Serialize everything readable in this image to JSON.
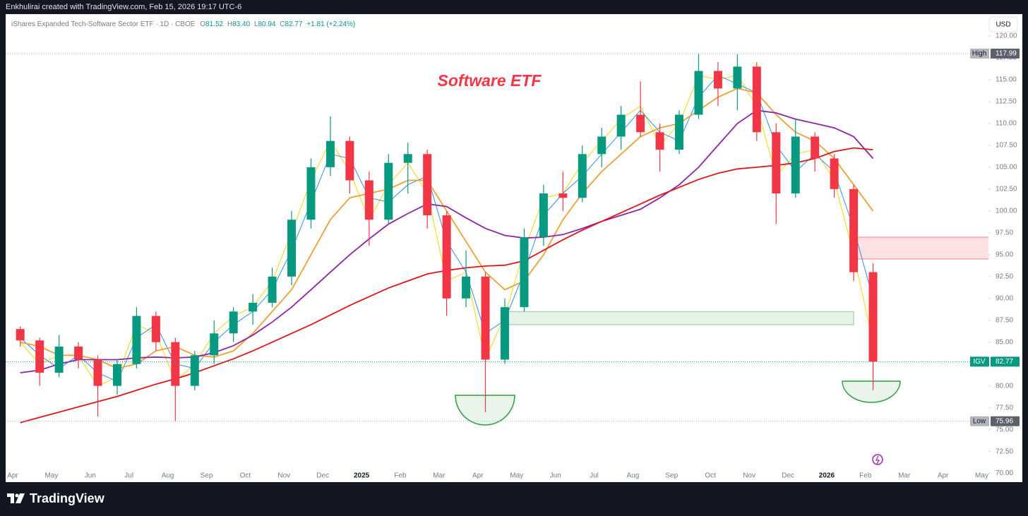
{
  "top_bar": "Enkhulirai created with TradingView.com, Feb 15, 2026 19:17 UTC-6",
  "brand": "TradingView",
  "header": {
    "symbol": "iShares Expanded Tech-Software Sector ETF · 1D · CBOE",
    "o_label": "O",
    "open": "81.52",
    "h_label": "H",
    "high": "83.40",
    "l_label": "L",
    "low": "80.94",
    "c_label": "C",
    "close": "82.77",
    "change": "+1.81 (+2.24%)",
    "currency": "USD"
  },
  "chart_data": {
    "type": "candlestick",
    "title": "Software ETF",
    "categories": [
      "Apr",
      null,
      "May",
      null,
      "Jun",
      null,
      "Jul",
      null,
      "Aug",
      null,
      "Sep",
      null,
      "Oct",
      null,
      "Nov",
      null,
      "Dec",
      null,
      "2025",
      null,
      "Feb",
      null,
      "Mar",
      null,
      "Apr",
      null,
      "May",
      null,
      "Jun",
      null,
      "Jul",
      null,
      "Aug",
      null,
      "Sep",
      null,
      "Oct",
      null,
      "Nov",
      null,
      "Dec",
      null,
      "2026",
      null,
      "Feb",
      null,
      "Mar",
      null,
      "Apr",
      null,
      "May",
      null
    ],
    "ylim": [
      69,
      122.5
    ],
    "yticks": [
      {
        "value": 70,
        "label": "70.00"
      },
      {
        "value": 72.5,
        "label": "72.50"
      },
      {
        "value": 75,
        "label": "75.00"
      },
      {
        "value": 77.5,
        "label": "77.50"
      },
      {
        "value": 80,
        "label": "80.00"
      },
      {
        "value": 82.5,
        "label": "82.50"
      },
      {
        "value": 85,
        "label": "85.00"
      },
      {
        "value": 87.5,
        "label": "87.50"
      },
      {
        "value": 90,
        "label": "90.00"
      },
      {
        "value": 92.5,
        "label": "92.50"
      },
      {
        "value": 95,
        "label": "95.00"
      },
      {
        "value": 97.5,
        "label": "97.50"
      },
      {
        "value": 100,
        "label": "100.00"
      },
      {
        "value": 102.5,
        "label": "102.50"
      },
      {
        "value": 105,
        "label": "105.00"
      },
      {
        "value": 107.5,
        "label": "107.50"
      },
      {
        "value": 110,
        "label": "110.00"
      },
      {
        "value": 112.5,
        "label": "112.50"
      },
      {
        "value": 115,
        "label": "115.00"
      },
      {
        "value": 117.5,
        "label": "117.50"
      },
      {
        "value": 120,
        "label": "120.00"
      }
    ],
    "series": [
      {
        "name": "IGV",
        "type": "candlestick",
        "color": "#089981",
        "down_color": "#f23645",
        "open": [
          86.5,
          85.2,
          81.5,
          84.5,
          83,
          80,
          82.5,
          88,
          85,
          80,
          83.5,
          86,
          88.5,
          89.5,
          92.5,
          99,
          105,
          108,
          103.5,
          99,
          105.5,
          106.5,
          99.5,
          90,
          92.5,
          83,
          89,
          97,
          102,
          101.5,
          106.5,
          108.5,
          111,
          109,
          107,
          111,
          116,
          114,
          116.5,
          109,
          102,
          108.5,
          106,
          102.5,
          93,
          null,
          null,
          null,
          null,
          null,
          null,
          null
        ],
        "high": [
          86.8,
          85.5,
          85.8,
          85,
          83.5,
          83,
          89,
          88.5,
          85.5,
          84,
          87.5,
          89,
          90.5,
          93.5,
          100,
          106,
          110.8,
          108.5,
          104.5,
          106.5,
          107.8,
          107,
          100,
          95.5,
          93,
          90,
          98,
          103,
          104.5,
          107.5,
          109.5,
          112,
          114.8,
          110,
          111.5,
          117.99,
          117,
          117.9,
          117,
          110,
          110.5,
          109,
          106.5,
          103,
          94,
          null,
          null,
          null,
          null,
          null,
          null,
          null
        ],
        "low": [
          84.5,
          80,
          81,
          82,
          76.5,
          79,
          82,
          84,
          75.96,
          79.5,
          82.5,
          85,
          87,
          89,
          91.5,
          98,
          104,
          102,
          96,
          98.5,
          102,
          98,
          88,
          89,
          77,
          82.5,
          88.5,
          96,
          100,
          101,
          105,
          107,
          108.5,
          104.5,
          106.5,
          110.5,
          112,
          111.5,
          108,
          98.5,
          101.5,
          104.5,
          101.5,
          92,
          79.5,
          null,
          null,
          null,
          null,
          null,
          null,
          null
        ],
        "close": [
          85.2,
          81.5,
          84.5,
          83,
          80,
          82.5,
          88,
          85,
          80,
          83.5,
          86,
          88.5,
          89.5,
          92.5,
          99,
          105,
          108,
          103.5,
          99,
          105.5,
          106.5,
          99.5,
          90,
          92.5,
          83,
          89,
          97,
          102,
          101.5,
          106.5,
          108.5,
          111,
          109,
          107,
          111,
          116,
          114,
          116.5,
          109,
          102,
          108.5,
          106,
          102.5,
          93,
          82.77,
          null,
          null,
          null,
          null,
          null,
          null,
          null
        ]
      },
      {
        "type": "line",
        "color": "#f5d50a",
        "values": [
          85,
          82.5,
          83.5,
          83.5,
          80,
          81,
          87,
          86,
          80.5,
          82.5,
          86,
          88,
          89,
          92,
          97.5,
          103.5,
          108,
          104.5,
          99,
          103,
          105.5,
          102,
          92,
          93,
          83,
          88,
          95.5,
          101.5,
          102,
          105.5,
          108,
          110.5,
          112,
          107.5,
          110,
          115.5,
          115,
          115.5,
          112,
          104,
          106.5,
          107,
          103.5,
          95,
          85,
          null,
          null,
          null,
          null,
          null,
          null,
          null
        ]
      },
      {
        "type": "line",
        "color": "#2f8fe8",
        "values": [
          85.5,
          83.5,
          82,
          83.5,
          81.5,
          80.5,
          85.5,
          87,
          82.5,
          82,
          85,
          87,
          88.5,
          91,
          95.5,
          101,
          106.5,
          106,
          101.5,
          101,
          103,
          104,
          96.5,
          93,
          86,
          87.5,
          93,
          99.5,
          102,
          104,
          106.5,
          109,
          111.5,
          109,
          108,
          113,
          115.5,
          114.5,
          113.5,
          107.5,
          104.5,
          106.5,
          104.5,
          98,
          90,
          null,
          null,
          null,
          null,
          null,
          null,
          null
        ]
      },
      {
        "type": "line",
        "color": "#f0a030",
        "values": [
          85,
          84.5,
          83.5,
          83.5,
          83,
          82,
          82.5,
          84,
          84.5,
          83.5,
          83.3,
          84,
          86,
          88.5,
          91,
          95,
          99,
          101.5,
          102,
          102.5,
          103.5,
          103.5,
          100,
          96.5,
          93,
          91,
          92,
          95,
          99,
          102,
          104.5,
          106.5,
          108.5,
          109.5,
          110,
          111.5,
          113,
          114,
          113.5,
          111,
          109,
          108,
          106,
          103,
          100,
          null,
          null,
          null,
          null,
          null,
          null,
          null
        ]
      },
      {
        "type": "line",
        "color": "#8e24aa",
        "values": [
          81.5,
          81.8,
          82.5,
          83,
          83,
          83,
          83.2,
          83.3,
          83.2,
          83.3,
          83.8,
          84.6,
          85.8,
          87.3,
          89,
          91,
          93,
          95,
          96.8,
          98.5,
          99.7,
          100.8,
          100.5,
          99.2,
          98,
          97.2,
          96.9,
          97,
          97.3,
          98,
          98.8,
          99.5,
          100.2,
          101.5,
          103,
          105,
          107.5,
          110,
          111.5,
          111.2,
          110.5,
          110,
          109.5,
          108.5,
          106,
          null,
          null,
          null,
          null,
          null,
          null,
          null
        ]
      },
      {
        "type": "line",
        "color": "#e0151a",
        "values": [
          75.8,
          76.4,
          77,
          77.6,
          78.2,
          78.8,
          79.5,
          80.2,
          80.8,
          81.5,
          82.3,
          83.1,
          84,
          85,
          86,
          87,
          88.1,
          89.2,
          90.2,
          91.2,
          92,
          92.8,
          93.2,
          93.5,
          93.7,
          93.8,
          94.3,
          95.5,
          96.7,
          97.8,
          98.8,
          99.8,
          100.8,
          101.8,
          102.7,
          103.6,
          104.3,
          104.8,
          105,
          105.2,
          105.5,
          106,
          106.8,
          107.2,
          107,
          null,
          null,
          null,
          null,
          null,
          null,
          null
        ]
      }
    ],
    "zones": [
      {
        "start": 25,
        "end": 43,
        "ymin": 87,
        "ymax": 88.5,
        "color": "#4caf50"
      },
      {
        "start": 43,
        "end": 51,
        "ymin": 94.5,
        "ymax": 97,
        "color": "#f23645"
      }
    ],
    "price_labels": [
      {
        "label": "High",
        "value": 117.99,
        "color": "#b2b5be"
      },
      {
        "label": "IGV",
        "value": 82.77,
        "color": "#089981"
      },
      {
        "label": "Low",
        "value": 75.96,
        "color": "#b2b5be"
      }
    ],
    "grid": false
  }
}
